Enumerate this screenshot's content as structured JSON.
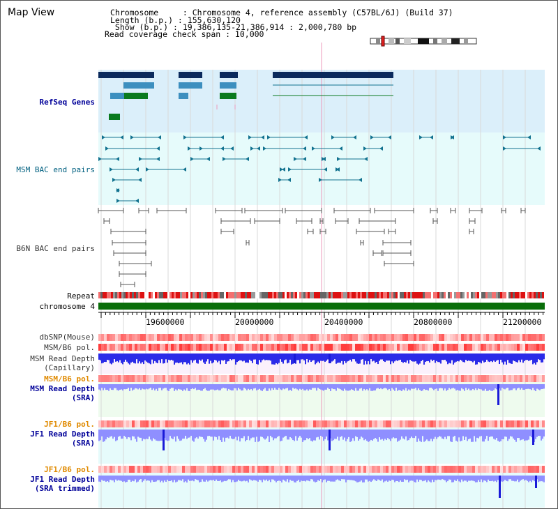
{
  "header": {
    "title": "Map View",
    "info_lines": [
      "Chromosome     : Chromosome 4, reference assembly (C57BL/6J) (Build 37)",
      "Length (b.p.) : 155,630,120",
      " Show (b.p.) : 19,386,135-21,386,914 : 2,000,780 bp",
      "Read coverage check span : 10,000"
    ]
  },
  "track_labels": {
    "refseq": "RefSeq Genes",
    "msm_bac": "MSM BAC end pairs",
    "b6n_bac": "B6N BAC end pairs",
    "repeat": "Repeat",
    "chromosome": "chromosome 4",
    "dbsnp": "dbSNP(Mouse)",
    "msm_pol_1": "MSM/B6 pol.",
    "msm_depth_cap_1": "MSM Read Depth",
    "msm_depth_cap_2": "(Capillary)",
    "msm_pol_2": "MSM/B6 pol.",
    "msm_depth_sra_1": "MSM Read Depth",
    "msm_depth_sra_2": "(SRA)",
    "jf1_pol_1": "JF1/B6 pol.",
    "jf1_depth_1": "JF1 Read Depth",
    "jf1_depth_2": "(SRA)",
    "jf1_pol_2": "JF1/B6 pol.",
    "jf1_depth_trim_1": "JF1 Read Depth",
    "jf1_depth_trim_2": "(SRA trimmed)"
  },
  "axis": {
    "ticks": [
      "19600000",
      "20000000",
      "20400000",
      "20800000",
      "21200000"
    ]
  },
  "colors": {
    "refseq_bg": "#dbeffa",
    "msm_bg": "#e6fbfb",
    "gene_dark": "#0b2a5c",
    "gene_mid": "#3c8fbf",
    "gene_green": "#0a7a1e",
    "bac_teal": "#12728f",
    "bac_grey": "#555555",
    "chromosome_green": "#0a6e0a",
    "depth_blue": "#2b2be8",
    "depth_light": "#8f8fff",
    "pol_red": "#ee2222",
    "highlight": "#ee99bb"
  }
}
